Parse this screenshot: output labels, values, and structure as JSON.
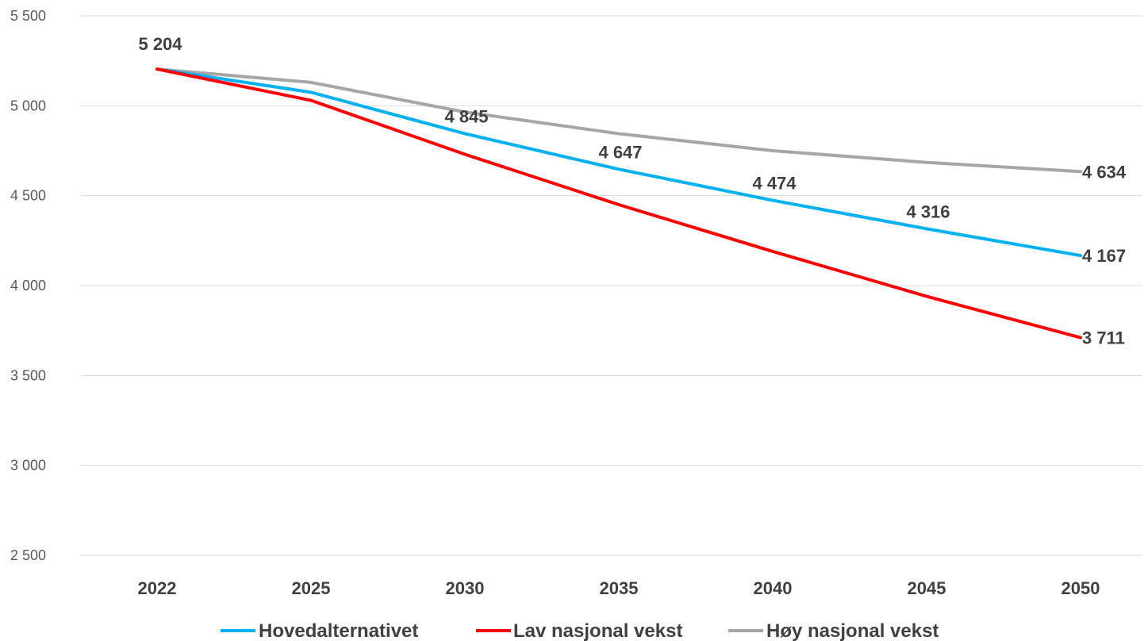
{
  "chart_data": {
    "type": "line",
    "title": "",
    "xlabel": "",
    "ylabel": "",
    "categories": [
      "2022",
      "2025",
      "2030",
      "2035",
      "2040",
      "2045",
      "2050"
    ],
    "ylim": [
      2500,
      5500
    ],
    "yticks": [
      2500,
      3000,
      3500,
      4000,
      4500,
      5000,
      5500
    ],
    "ytick_labels": [
      "2 500",
      "3 000",
      "3 500",
      "4 000",
      "4 500",
      "5 000",
      "5 500"
    ],
    "grid": "horizontal",
    "legend_position": "bottom",
    "series": [
      {
        "name": "Hovedalternativet",
        "color": "#00b0f0",
        "values": [
          5204,
          5075,
          4845,
          4647,
          4474,
          4316,
          4167
        ],
        "labels": [
          null,
          null,
          "4 845",
          "4 647",
          "4 474",
          "4 316",
          "4 167"
        ]
      },
      {
        "name": "Lav nasjonal vekst",
        "color": "#ff0000",
        "values": [
          5204,
          5030,
          4730,
          4450,
          4190,
          3940,
          3711
        ],
        "labels": [
          null,
          null,
          null,
          null,
          null,
          null,
          "3 711"
        ]
      },
      {
        "name": "Høy nasjonal vekst",
        "color": "#a6a6a6",
        "values": [
          5204,
          5130,
          4965,
          4845,
          4750,
          4685,
          4634
        ],
        "labels": [
          null,
          null,
          null,
          null,
          null,
          null,
          "4 634"
        ]
      }
    ],
    "annotations": [
      {
        "category": "2022",
        "value": 5204,
        "text": "5 204"
      }
    ]
  }
}
